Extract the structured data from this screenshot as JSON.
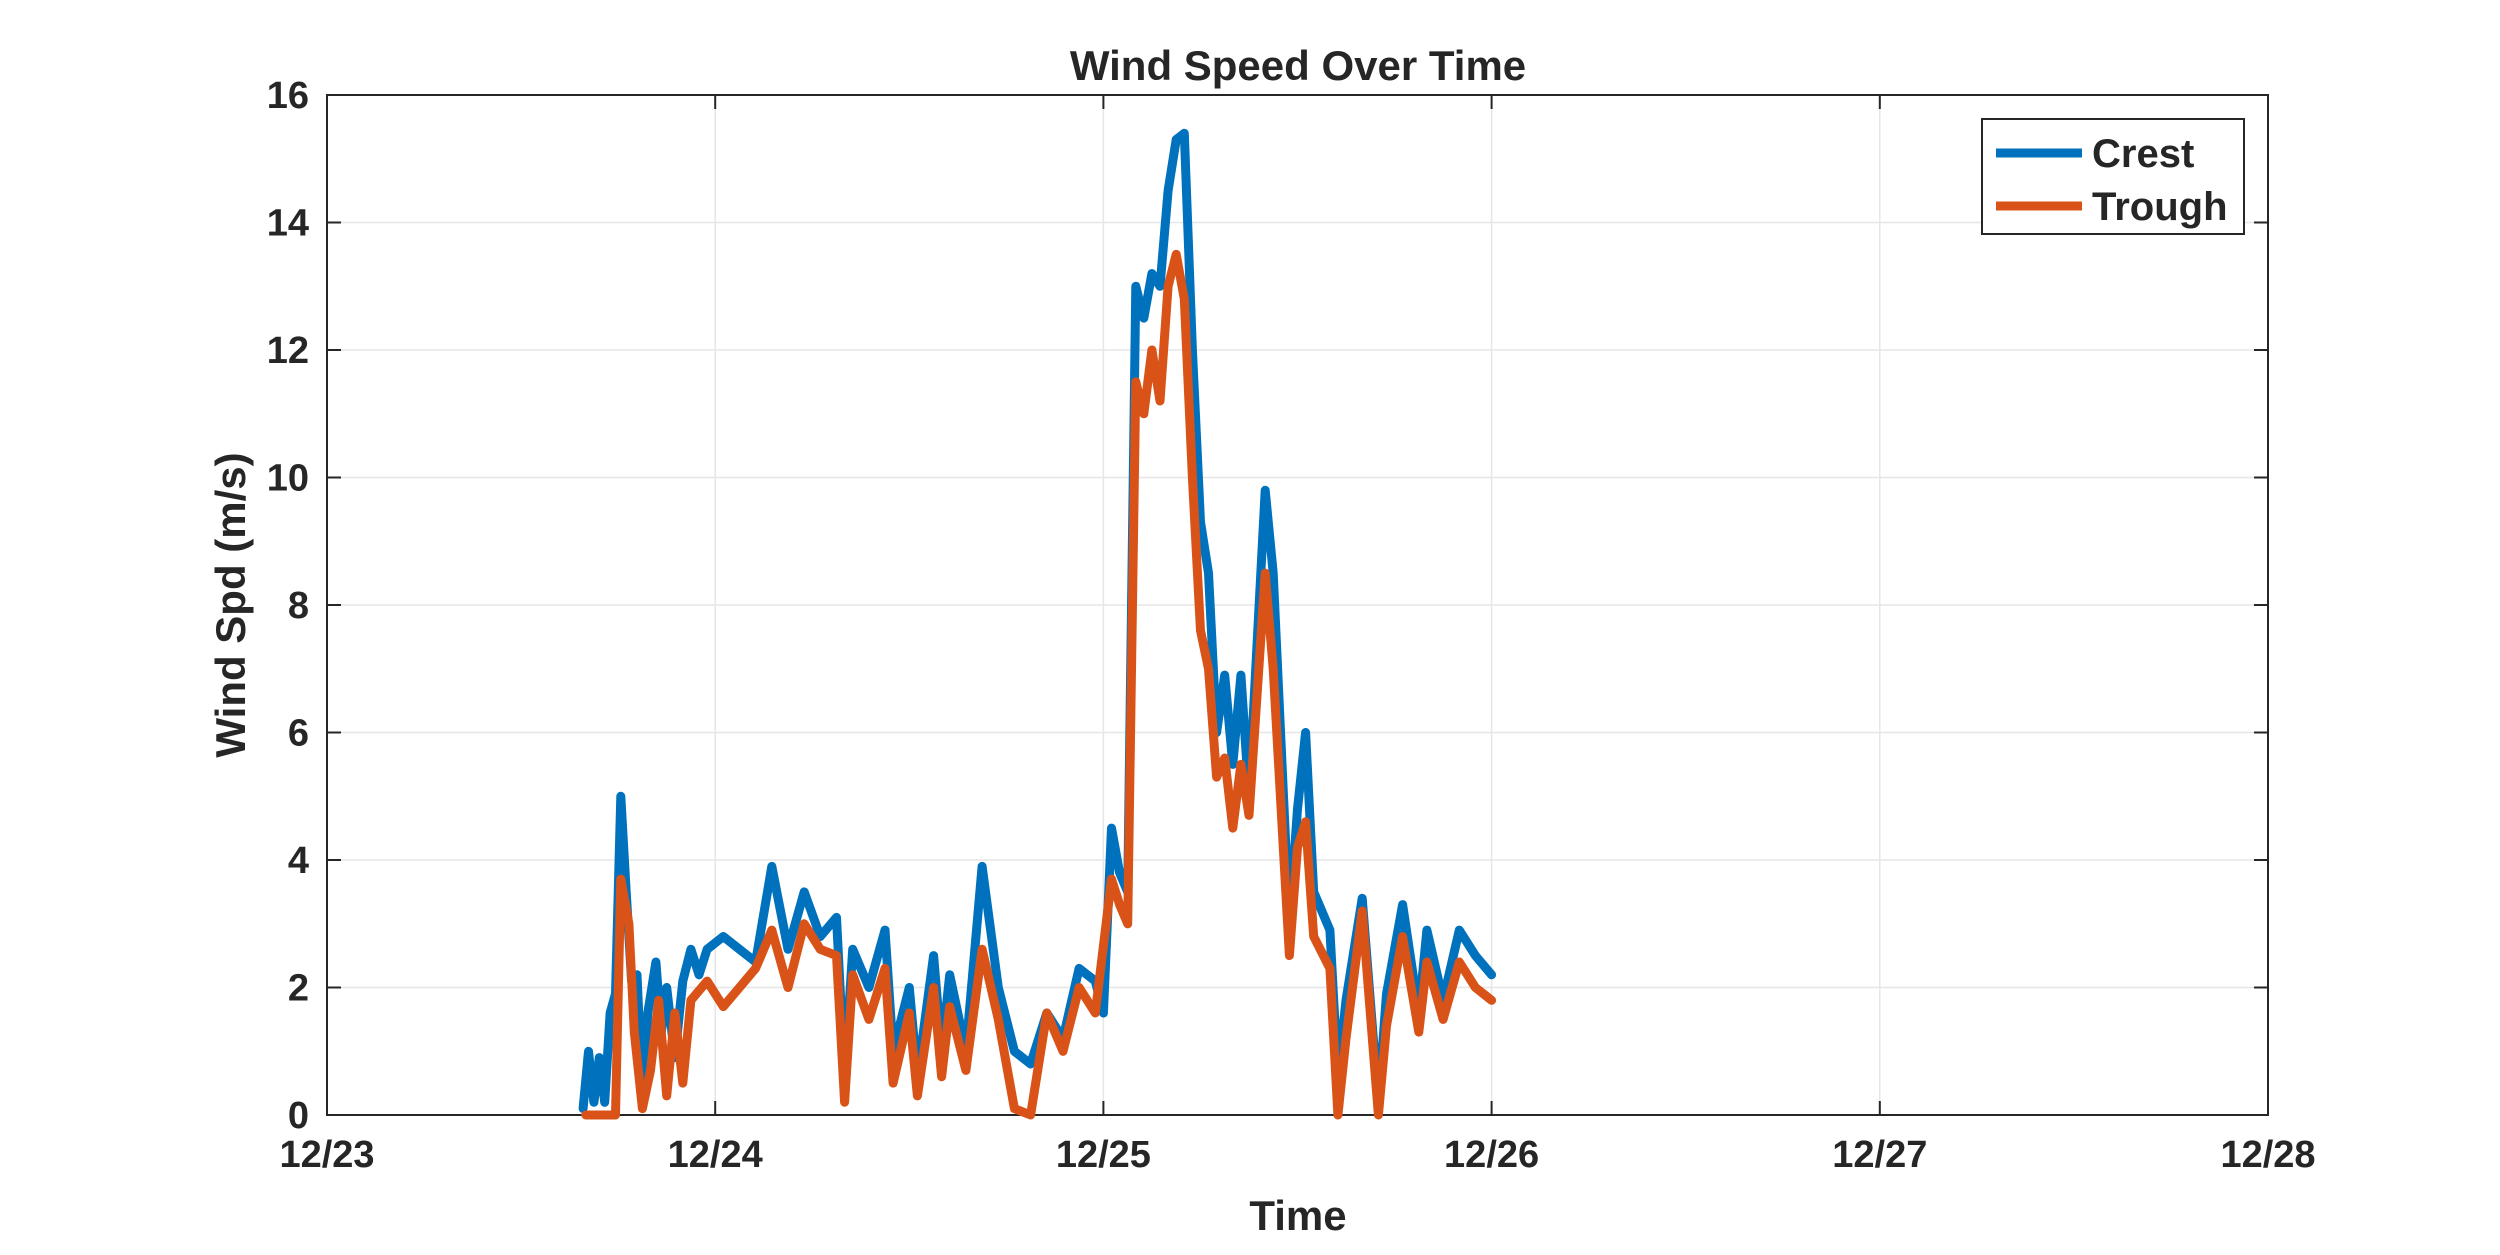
{
  "chart_data": {
    "type": "line",
    "title": "Wind Speed Over Time",
    "xlabel": "Time",
    "ylabel": "Wind Spd (m/s)",
    "xlim": [
      "12/23",
      "12/28"
    ],
    "ylim": [
      0,
      16
    ],
    "x_ticks": [
      "12/23",
      "12/24",
      "12/25",
      "12/26",
      "12/27",
      "12/28"
    ],
    "y_ticks": [
      0,
      2,
      4,
      6,
      8,
      10,
      12,
      14,
      16
    ],
    "grid": true,
    "legend": "top-right",
    "series": [
      {
        "name": "Crest",
        "color": "#0072BD",
        "points": [
          [
            "12/23 15:50",
            0.1
          ],
          [
            "12/23 16:10",
            1.0
          ],
          [
            "12/23 16:30",
            0.2
          ],
          [
            "12/23 16:50",
            0.9
          ],
          [
            "12/23 17:10",
            0.2
          ],
          [
            "12/23 17:30",
            1.6
          ],
          [
            "12/23 17:50",
            1.9
          ],
          [
            "12/23 18:10",
            5.0
          ],
          [
            "12/23 18:30",
            3.5
          ],
          [
            "12/23 18:50",
            2.1
          ],
          [
            "12/23 19:10",
            2.2
          ],
          [
            "12/23 19:30",
            0.3
          ],
          [
            "12/23 19:50",
            1.6
          ],
          [
            "12/23 20:20",
            2.4
          ],
          [
            "12/23 20:40",
            1.3
          ],
          [
            "12/23 21:00",
            2.0
          ],
          [
            "12/23 21:30",
            0.9
          ],
          [
            "12/23 22:00",
            2.1
          ],
          [
            "12/23 22:30",
            2.6
          ],
          [
            "12/23 23:00",
            2.2
          ],
          [
            "12/23 23:30",
            2.6
          ],
          [
            "12/24 00:30",
            2.8
          ],
          [
            "12/24 01:30",
            2.6
          ],
          [
            "12/24 02:30",
            2.4
          ],
          [
            "12/24 03:30",
            3.9
          ],
          [
            "12/24 04:30",
            2.6
          ],
          [
            "12/24 05:30",
            3.5
          ],
          [
            "12/24 06:30",
            2.8
          ],
          [
            "12/24 07:30",
            3.1
          ],
          [
            "12/24 08:00",
            0.6
          ],
          [
            "12/24 08:30",
            2.6
          ],
          [
            "12/24 09:30",
            2.0
          ],
          [
            "12/24 10:30",
            2.9
          ],
          [
            "12/24 11:00",
            1.0
          ],
          [
            "12/24 12:00",
            2.0
          ],
          [
            "12/24 12:30",
            0.6
          ],
          [
            "12/24 13:30",
            2.5
          ],
          [
            "12/24 14:00",
            1.0
          ],
          [
            "12/24 14:30",
            2.2
          ],
          [
            "12/24 15:30",
            1.0
          ],
          [
            "12/24 16:30",
            3.9
          ],
          [
            "12/24 17:30",
            2.0
          ],
          [
            "12/24 18:30",
            1.0
          ],
          [
            "12/24 19:30",
            0.8
          ],
          [
            "12/24 20:30",
            1.6
          ],
          [
            "12/24 21:30",
            1.2
          ],
          [
            "12/24 22:30",
            2.3
          ],
          [
            "12/24 23:30",
            2.1
          ],
          [
            "12/24 24:00",
            1.6
          ],
          [
            "12/24 24:30",
            4.5
          ],
          [
            "12/24 25:00",
            3.8
          ],
          [
            "12/24 25:30",
            3.5
          ],
          [
            "12/24 26:00",
            13.0
          ],
          [
            "12/24 26:30",
            12.5
          ],
          [
            "12/24 27:00",
            13.2
          ],
          [
            "12/24 27:30",
            13.0
          ],
          [
            "12/24 28:00",
            14.5
          ],
          [
            "12/24 28:30",
            15.3
          ],
          [
            "12/24 29:00",
            15.4
          ],
          [
            "12/24 29:30",
            12.0
          ],
          [
            "12/24 30:00",
            9.3
          ],
          [
            "12/24 30:30",
            8.5
          ],
          [
            "12/24 31:00",
            6.0
          ],
          [
            "12/24 31:30",
            6.9
          ],
          [
            "12/24 32:00",
            5.5
          ],
          [
            "12/24 32:30",
            6.9
          ],
          [
            "12/24 33:00",
            5.0
          ],
          [
            "12/24 34:00",
            9.8
          ],
          [
            "12/24 34:30",
            8.5
          ],
          [
            "12/24 35:30",
            3.0
          ],
          [
            "12/24 36:00",
            4.8
          ],
          [
            "12/24 36:30",
            6.0
          ],
          [
            "12/24 37:00",
            3.5
          ],
          [
            "12/24 38:00",
            2.9
          ],
          [
            "12/24 38:30",
            0.6
          ],
          [
            "12/24 39:00",
            1.8
          ],
          [
            "12/24 40:00",
            3.4
          ],
          [
            "12/24 41:00",
            0.2
          ],
          [
            "12/24 41:30",
            1.9
          ],
          [
            "12/24 42:30",
            3.3
          ],
          [
            "12/24 43:30",
            1.6
          ],
          [
            "12/24 44:00",
            2.9
          ],
          [
            "12/24 45:00",
            1.8
          ],
          [
            "12/24 46:00",
            2.9
          ],
          [
            "12/24 47:00",
            2.5
          ],
          [
            "12/24 48:00",
            2.2
          ]
        ]
      },
      {
        "name": "Trough",
        "color": "#D95319",
        "points": [
          [
            "12/23 16:00",
            0.0
          ],
          [
            "12/23 17:00",
            0.0
          ],
          [
            "12/23 17:50",
            0.0
          ],
          [
            "12/23 18:10",
            3.7
          ],
          [
            "12/23 18:40",
            3.0
          ],
          [
            "12/23 19:00",
            1.3
          ],
          [
            "12/23 19:30",
            0.1
          ],
          [
            "12/23 20:00",
            0.7
          ],
          [
            "12/23 20:30",
            1.8
          ],
          [
            "12/23 21:00",
            0.3
          ],
          [
            "12/23 21:30",
            1.6
          ],
          [
            "12/23 22:00",
            0.5
          ],
          [
            "12/23 22:30",
            1.8
          ],
          [
            "12/23 23:30",
            2.1
          ],
          [
            "12/24 00:30",
            1.7
          ],
          [
            "12/24 01:30",
            2.0
          ],
          [
            "12/24 02:30",
            2.3
          ],
          [
            "12/24 03:30",
            2.9
          ],
          [
            "12/24 04:30",
            2.0
          ],
          [
            "12/24 05:30",
            3.0
          ],
          [
            "12/24 06:30",
            2.6
          ],
          [
            "12/24 07:30",
            2.5
          ],
          [
            "12/24 08:00",
            0.2
          ],
          [
            "12/24 08:30",
            2.2
          ],
          [
            "12/24 09:30",
            1.5
          ],
          [
            "12/24 10:30",
            2.3
          ],
          [
            "12/24 11:00",
            0.5
          ],
          [
            "12/24 12:00",
            1.6
          ],
          [
            "12/24 12:30",
            0.3
          ],
          [
            "12/24 13:30",
            2.0
          ],
          [
            "12/24 14:00",
            0.6
          ],
          [
            "12/24 14:30",
            1.7
          ],
          [
            "12/24 15:30",
            0.7
          ],
          [
            "12/24 16:30",
            2.6
          ],
          [
            "12/24 17:30",
            1.5
          ],
          [
            "12/24 18:30",
            0.1
          ],
          [
            "12/24 19:30",
            0.0
          ],
          [
            "12/24 20:30",
            1.6
          ],
          [
            "12/24 21:30",
            1.0
          ],
          [
            "12/24 22:30",
            2.0
          ],
          [
            "12/24 23:30",
            1.6
          ],
          [
            "12/24 24:30",
            3.7
          ],
          [
            "12/24 25:00",
            3.3
          ],
          [
            "12/24 25:30",
            3.0
          ],
          [
            "12/24 26:00",
            11.5
          ],
          [
            "12/24 26:30",
            11.0
          ],
          [
            "12/24 27:00",
            12.0
          ],
          [
            "12/24 27:30",
            11.2
          ],
          [
            "12/24 28:00",
            13.0
          ],
          [
            "12/24 28:30",
            13.5
          ],
          [
            "12/24 29:00",
            12.8
          ],
          [
            "12/24 29:30",
            10.0
          ],
          [
            "12/24 30:00",
            7.6
          ],
          [
            "12/24 30:30",
            7.0
          ],
          [
            "12/24 31:00",
            5.3
          ],
          [
            "12/24 31:30",
            5.6
          ],
          [
            "12/24 32:00",
            4.5
          ],
          [
            "12/24 32:30",
            5.5
          ],
          [
            "12/24 33:00",
            4.7
          ],
          [
            "12/24 34:00",
            8.5
          ],
          [
            "12/24 34:30",
            7.0
          ],
          [
            "12/24 35:30",
            2.5
          ],
          [
            "12/24 36:00",
            4.2
          ],
          [
            "12/24 36:30",
            4.6
          ],
          [
            "12/24 37:00",
            2.8
          ],
          [
            "12/24 38:00",
            2.3
          ],
          [
            "12/24 38:30",
            0.0
          ],
          [
            "12/24 39:00",
            1.2
          ],
          [
            "12/24 40:00",
            3.2
          ],
          [
            "12/24 41:00",
            0.0
          ],
          [
            "12/24 41:30",
            1.4
          ],
          [
            "12/24 42:30",
            2.8
          ],
          [
            "12/24 43:30",
            1.3
          ],
          [
            "12/24 44:00",
            2.4
          ],
          [
            "12/24 45:00",
            1.5
          ],
          [
            "12/24 46:00",
            2.4
          ],
          [
            "12/24 47:00",
            2.0
          ],
          [
            "12/24 48:00",
            1.8
          ]
        ]
      }
    ]
  }
}
